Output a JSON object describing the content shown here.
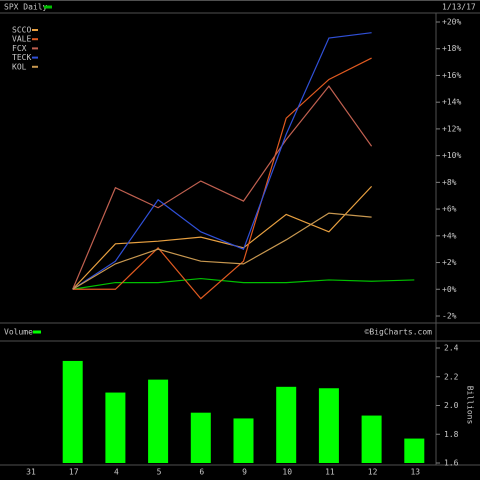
{
  "chart_data": [
    {
      "type": "line",
      "date": "1/13/17",
      "ylim": [
        -2,
        20
      ],
      "yticks": [
        {
          "value": 20,
          "label": "+20%"
        },
        {
          "value": 18,
          "label": "+18%"
        },
        {
          "value": 16,
          "label": "+16%"
        },
        {
          "value": 14,
          "label": "+14%"
        },
        {
          "value": 12,
          "label": "+12%"
        },
        {
          "value": 10,
          "label": "+10%"
        },
        {
          "value": 8,
          "label": "+8%"
        },
        {
          "value": 6,
          "label": "+6%"
        },
        {
          "value": 4,
          "label": "+4%"
        },
        {
          "value": 2,
          "label": "+2%"
        },
        {
          "value": 0,
          "label": "+0%"
        },
        {
          "value": -2,
          "label": "-2%"
        }
      ],
      "series": [
        {
          "name": "SPX Daily",
          "color": "#00c000",
          "values": [
            null,
            0,
            0.5,
            0.5,
            0.8,
            0.5,
            0.5,
            0.7,
            0.6,
            0.7
          ]
        },
        {
          "name": "SCCO",
          "color": "#e8a040",
          "values": [
            null,
            0,
            3.4,
            3.6,
            3.9,
            3.1,
            5.6,
            4.3,
            7.7,
            null
          ]
        },
        {
          "name": "VALE",
          "color": "#e05a20",
          "values": [
            null,
            0,
            0,
            3.1,
            -0.7,
            2.1,
            12.8,
            15.7,
            17.3,
            null
          ]
        },
        {
          "name": "FCX",
          "color": "#c06050",
          "values": [
            null,
            0,
            7.6,
            6.1,
            8.1,
            6.6,
            11.2,
            15.2,
            10.7,
            null
          ]
        },
        {
          "name": "TECK",
          "color": "#3050d8",
          "values": [
            null,
            0,
            2.1,
            6.7,
            4.3,
            3.0,
            11.6,
            18.8,
            19.2,
            null
          ]
        },
        {
          "name": "KOL",
          "color": "#c89850",
          "values": [
            null,
            0,
            1.9,
            3.0,
            2.1,
            1.9,
            3.7,
            5.7,
            5.4,
            null
          ]
        }
      ]
    },
    {
      "type": "bar",
      "source": "©BigCharts.com",
      "y_label": "Billions",
      "categories": [
        "31",
        "17",
        "4",
        "5",
        "6",
        "9",
        "10",
        "11",
        "12",
        "13"
      ],
      "ylim": [
        1.6,
        2.4
      ],
      "yticks": [
        2.4,
        2.2,
        {
          "value": 2.0,
          "label": "2.0"
        },
        1.8,
        1.6
      ],
      "series": [
        {
          "name": "Volume",
          "color": "#00ff00",
          "values": [
            null,
            2.31,
            2.09,
            2.18,
            1.95,
            1.91,
            2.13,
            2.12,
            1.93,
            1.77
          ]
        }
      ]
    }
  ]
}
